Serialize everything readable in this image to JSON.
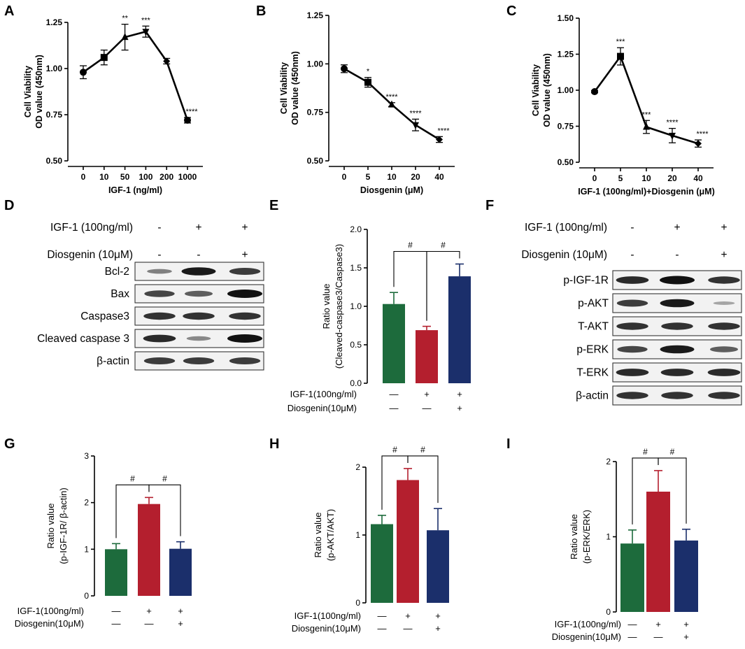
{
  "panel_labels": [
    "A",
    "B",
    "C",
    "D",
    "E",
    "F",
    "G",
    "H",
    "I"
  ],
  "chart_data": [
    {
      "id": "A",
      "type": "line",
      "categories": [
        "0",
        "10",
        "50",
        "100",
        "200",
        "1000"
      ],
      "values": [
        0.98,
        1.06,
        1.17,
        1.2,
        1.04,
        0.72
      ],
      "errors": [
        0.035,
        0.04,
        0.07,
        0.03,
        0.015,
        0.015
      ],
      "markers": [
        "circle",
        "square",
        "triangle",
        "triangle-down",
        "diamond",
        "circle"
      ],
      "significance": [
        "",
        "",
        "**",
        "***",
        "",
        "****"
      ],
      "xlabel": "IGF-1 (ng/ml)",
      "ylabel_line1": "Cell Viability",
      "ylabel_line2": "OD value (450nm)",
      "ylim": [
        0.5,
        1.25
      ],
      "yticks": [
        "0.50",
        "0.75",
        "1.00",
        "1.25"
      ]
    },
    {
      "id": "B",
      "type": "line",
      "categories": [
        "0",
        "5",
        "10",
        "20",
        "40"
      ],
      "values": [
        0.975,
        0.905,
        0.79,
        0.685,
        0.61
      ],
      "errors": [
        0.02,
        0.025,
        0.01,
        0.03,
        0.015
      ],
      "markers": [
        "circle",
        "square",
        "triangle",
        "triangle-down",
        "diamond"
      ],
      "significance": [
        "",
        "*",
        "****",
        "****",
        "****"
      ],
      "xlabel": "Diosgenin (μM)",
      "ylabel_line1": "Cell Viability",
      "ylabel_line2": "OD value (450nm)",
      "ylim": [
        0.5,
        1.25
      ],
      "yticks": [
        "0.50",
        "0.75",
        "1.00",
        "1.25"
      ]
    },
    {
      "id": "C",
      "type": "line",
      "categories": [
        "0",
        "5",
        "10",
        "20",
        "40"
      ],
      "values": [
        0.99,
        1.235,
        0.745,
        0.685,
        0.63
      ],
      "errors": [
        0.008,
        0.06,
        0.045,
        0.05,
        0.025
      ],
      "markers": [
        "circle",
        "square",
        "triangle",
        "triangle-down",
        "diamond"
      ],
      "significance": [
        "",
        "***",
        "***",
        "****",
        "****"
      ],
      "xlabel": "IGF-1 (100ng/ml)+Diosgenin (μM)",
      "ylabel_line1": "Cell Viability",
      "ylabel_line2": "OD value (450nm)",
      "ylim": [
        0.5,
        1.5
      ],
      "yticks": [
        "0.50",
        "0.75",
        "1.00",
        "1.25",
        "1.50"
      ]
    },
    {
      "id": "E",
      "type": "bar",
      "values": [
        1.03,
        0.69,
        1.39
      ],
      "errors": [
        0.15,
        0.05,
        0.16
      ],
      "colors": [
        "#1d6b3c",
        "#b41f2e",
        "#1b2f6b"
      ],
      "ylabel_line1": "Ratio value",
      "ylabel_line2": "(Cleaved-caspase3/Caspase3)",
      "ylim": [
        0,
        2.0
      ],
      "yticks": [
        "0.0",
        "0.5",
        "1.0",
        "1.5",
        "2.0"
      ],
      "significance": [
        "#",
        "#"
      ],
      "row1_label": "IGF-1(100ng/ml)",
      "row1_values": [
        "—",
        "+",
        "+"
      ],
      "row2_label": "Diosgenin(10μM)",
      "row2_values": [
        "—",
        "—",
        "+"
      ]
    },
    {
      "id": "G",
      "type": "bar",
      "values": [
        1.0,
        1.97,
        1.01
      ],
      "errors": [
        0.12,
        0.14,
        0.15
      ],
      "colors": [
        "#1d6b3c",
        "#b41f2e",
        "#1b2f6b"
      ],
      "ylabel_line1": "Ratio value",
      "ylabel_line2": "(p-IGF-1R/ β-actin)",
      "ylim": [
        0,
        3
      ],
      "yticks": [
        "0",
        "1",
        "2",
        "3"
      ],
      "significance": [
        "#",
        "#"
      ],
      "row1_label": "IGF-1(100ng/ml)",
      "row1_values": [
        "—",
        "+",
        "+"
      ],
      "row2_label": "Diosgenin(10μM)",
      "row2_values": [
        "—",
        "—",
        "+"
      ]
    },
    {
      "id": "H",
      "type": "bar",
      "values": [
        1.16,
        1.81,
        1.07
      ],
      "errors": [
        0.13,
        0.17,
        0.32
      ],
      "colors": [
        "#1d6b3c",
        "#b41f2e",
        "#1b2f6b"
      ],
      "ylabel_line1": "Ratio value",
      "ylabel_line2": "(p-AKT/AKT)",
      "ylim": [
        0,
        2
      ],
      "yticks": [
        "0",
        "1",
        "2"
      ],
      "significance": [
        "#",
        "#"
      ],
      "row1_label": "IGF-1(100ng/ml)",
      "row1_values": [
        "—",
        "+",
        "+"
      ],
      "row2_label": "Diosgenin(10μM)",
      "row2_values": [
        "—",
        "—",
        "+"
      ]
    },
    {
      "id": "I",
      "type": "bar",
      "values": [
        0.91,
        1.6,
        0.95
      ],
      "errors": [
        0.18,
        0.28,
        0.15
      ],
      "colors": [
        "#1d6b3c",
        "#b41f2e",
        "#1b2f6b"
      ],
      "ylabel_line1": "Ratio value",
      "ylabel_line2": "(p-ERK/ERK)",
      "ylim": [
        0,
        2
      ],
      "yticks": [
        "0",
        "1",
        "2"
      ],
      "significance": [
        "#",
        "#"
      ],
      "row1_label": "IGF-1(100ng/ml)",
      "row1_values": [
        "—",
        "+",
        "+"
      ],
      "row2_label": "Diosgenin(10μM)",
      "row2_values": [
        "—",
        "—",
        "+"
      ]
    }
  ],
  "blot_D": {
    "treat1_label": "IGF-1  (100ng/ml)",
    "treat1_values": [
      "-",
      "+",
      "+"
    ],
    "treat2_label": "Diosgenin  (10μM)",
    "treat2_values": [
      "-",
      "-",
      "+"
    ],
    "rows": [
      {
        "label": "Bcl-2",
        "intensity": [
          0.35,
          0.95,
          0.75
        ]
      },
      {
        "label": "Bax",
        "intensity": [
          0.7,
          0.55,
          1.0
        ]
      },
      {
        "label": "Caspase3",
        "intensity": [
          0.8,
          0.8,
          0.8
        ]
      },
      {
        "label": "Cleaved caspase 3",
        "intensity": [
          0.85,
          0.3,
          1.0
        ]
      },
      {
        "label": "β-actin",
        "intensity": [
          0.75,
          0.75,
          0.75
        ]
      }
    ]
  },
  "blot_F": {
    "treat1_label": "IGF-1  (100ng/ml)",
    "treat1_values": [
      "-",
      "+",
      "+"
    ],
    "treat2_label": "Diosgenin  (10μM)",
    "treat2_values": [
      "-",
      "-",
      "+"
    ],
    "rows": [
      {
        "label": "p-IGF-1R",
        "intensity": [
          0.85,
          1.0,
          0.8
        ]
      },
      {
        "label": "p-AKT",
        "intensity": [
          0.75,
          0.95,
          0.12
        ]
      },
      {
        "label": "T-AKT",
        "intensity": [
          0.8,
          0.8,
          0.8
        ]
      },
      {
        "label": "p-ERK",
        "intensity": [
          0.7,
          0.95,
          0.55
        ]
      },
      {
        "label": "T-ERK",
        "intensity": [
          0.85,
          0.85,
          0.85
        ]
      },
      {
        "label": "β-actin",
        "intensity": [
          0.8,
          0.8,
          0.8
        ]
      }
    ]
  }
}
